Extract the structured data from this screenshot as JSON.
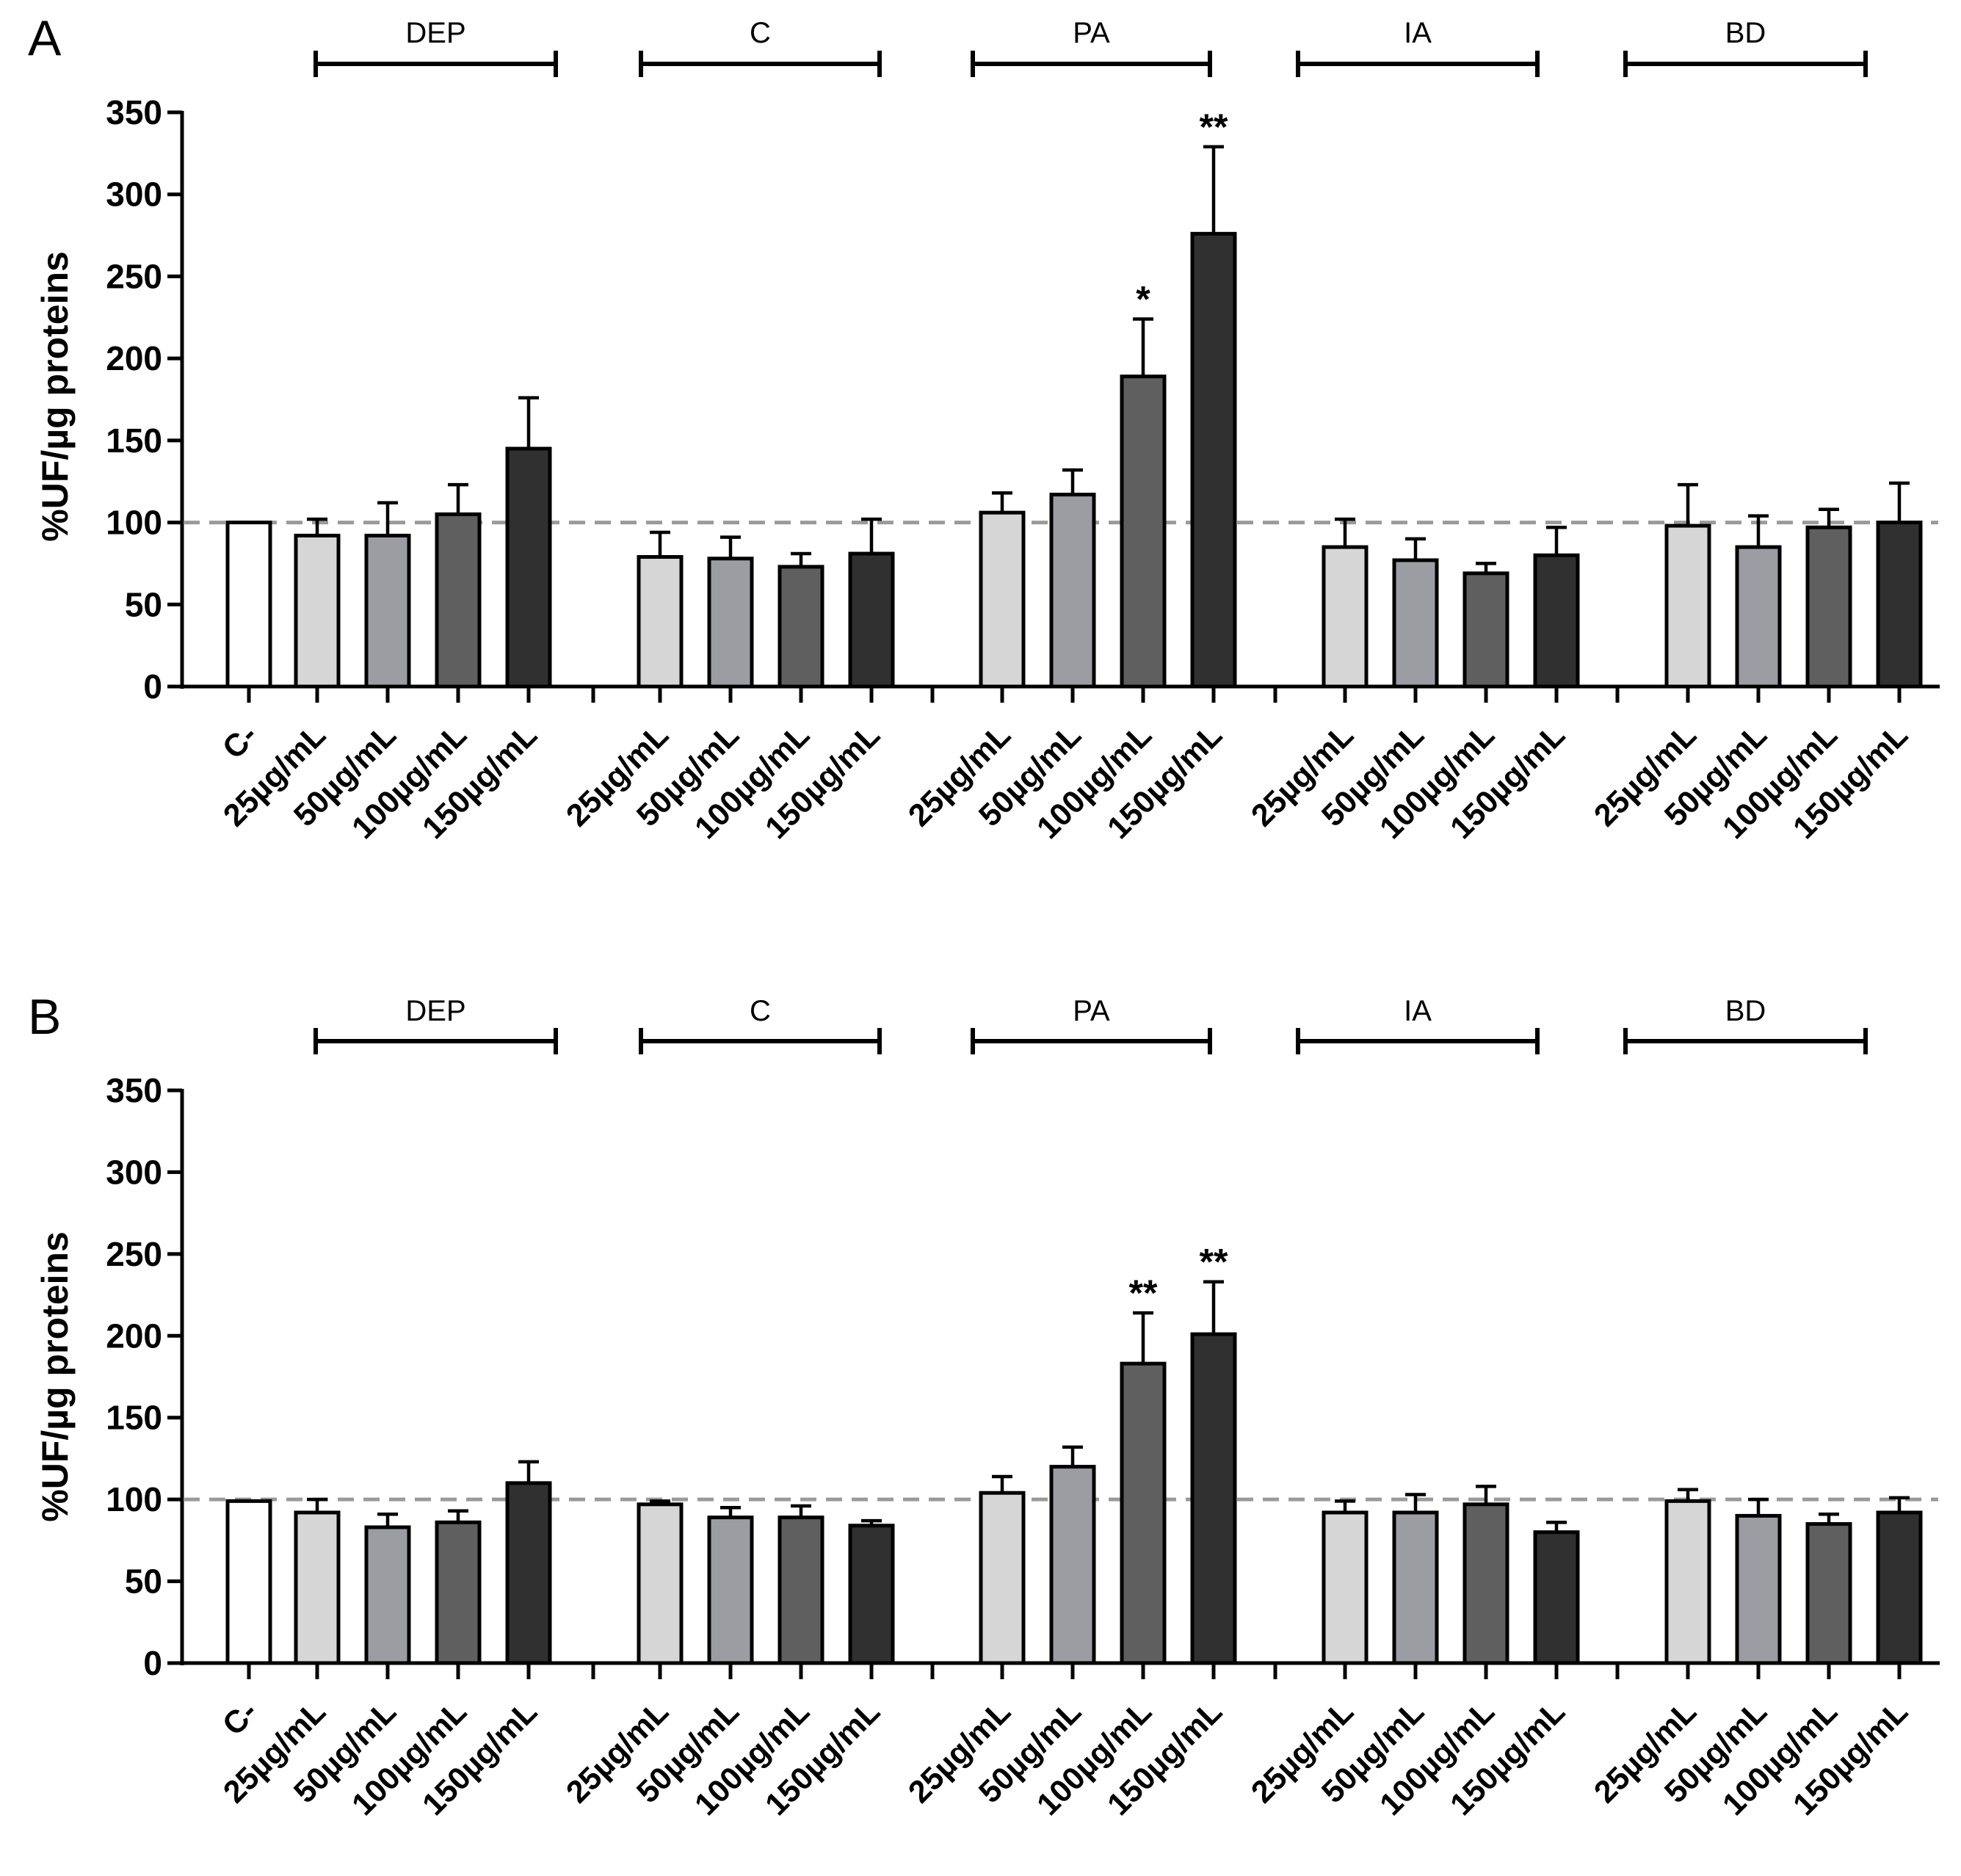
{
  "chart_data": [
    {
      "panel_label": "A",
      "type": "bar",
      "ylabel": "%UF/µg proteins",
      "ylim": [
        0,
        350
      ],
      "yticks": [
        0,
        50,
        100,
        150,
        200,
        250,
        300,
        350
      ],
      "reference_line": 100,
      "groups": [
        "DEP",
        "C",
        "PA",
        "IA",
        "BD"
      ],
      "control": {
        "label": "C-",
        "value": 100,
        "error": 0
      },
      "categories": [
        "25µg/mL",
        "50µg/mL",
        "100µg/mL",
        "150µg/mL"
      ],
      "series": [
        {
          "name": "DEP",
          "values": [
            92,
            92,
            105,
            145
          ],
          "errors": [
            10,
            20,
            18,
            31
          ],
          "significance": [
            "",
            "",
            "",
            ""
          ]
        },
        {
          "name": "C",
          "values": [
            79,
            78,
            73,
            81
          ],
          "errors": [
            15,
            13,
            8,
            21
          ],
          "significance": [
            "",
            "",
            "",
            ""
          ]
        },
        {
          "name": "PA",
          "values": [
            106,
            117,
            189,
            276
          ],
          "errors": [
            12,
            15,
            35,
            53
          ],
          "significance": [
            "",
            "",
            "*",
            "**"
          ]
        },
        {
          "name": "IA",
          "values": [
            85,
            77,
            69,
            80
          ],
          "errors": [
            17,
            13,
            6,
            17
          ],
          "significance": [
            "",
            "",
            "",
            ""
          ]
        },
        {
          "name": "BD",
          "values": [
            98,
            85,
            97,
            100
          ],
          "errors": [
            25,
            19,
            11,
            24
          ],
          "significance": [
            "",
            "",
            "",
            ""
          ]
        }
      ],
      "bar_colors": [
        "#ffffff",
        "#d6d6d6",
        "#9c9ca3",
        "#5f5f5f",
        "#303030"
      ]
    },
    {
      "panel_label": "B",
      "type": "bar",
      "ylabel": "%UF/µg proteins",
      "ylim": [
        0,
        350
      ],
      "yticks": [
        0,
        50,
        100,
        150,
        200,
        250,
        300,
        350
      ],
      "reference_line": 100,
      "groups": [
        "DEP",
        "C",
        "PA",
        "IA",
        "BD"
      ],
      "control": {
        "label": "C-",
        "value": 99,
        "error": 0
      },
      "categories": [
        "25µg/mL",
        "50µg/mL",
        "100µg/mL",
        "150µg/mL"
      ],
      "series": [
        {
          "name": "DEP",
          "values": [
            92,
            83,
            86,
            110
          ],
          "errors": [
            8,
            8,
            7,
            13
          ],
          "significance": [
            "",
            "",
            "",
            ""
          ]
        },
        {
          "name": "C",
          "values": [
            97,
            89,
            89,
            84
          ],
          "errors": [
            2,
            6,
            7,
            3
          ],
          "significance": [
            "",
            "",
            "",
            ""
          ]
        },
        {
          "name": "PA",
          "values": [
            104,
            120,
            183,
            201
          ],
          "errors": [
            10,
            12,
            31,
            32
          ],
          "significance": [
            "",
            "",
            "**",
            "**"
          ]
        },
        {
          "name": "IA",
          "values": [
            92,
            92,
            97,
            80
          ],
          "errors": [
            7,
            11,
            11,
            6
          ],
          "significance": [
            "",
            "",
            "",
            ""
          ]
        },
        {
          "name": "BD",
          "values": [
            99,
            90,
            85,
            92
          ],
          "errors": [
            7,
            10,
            6,
            9
          ],
          "significance": [
            "",
            "",
            "",
            ""
          ]
        }
      ],
      "bar_colors": [
        "#ffffff",
        "#d6d6d6",
        "#9c9ca3",
        "#5f5f5f",
        "#303030"
      ]
    }
  ]
}
